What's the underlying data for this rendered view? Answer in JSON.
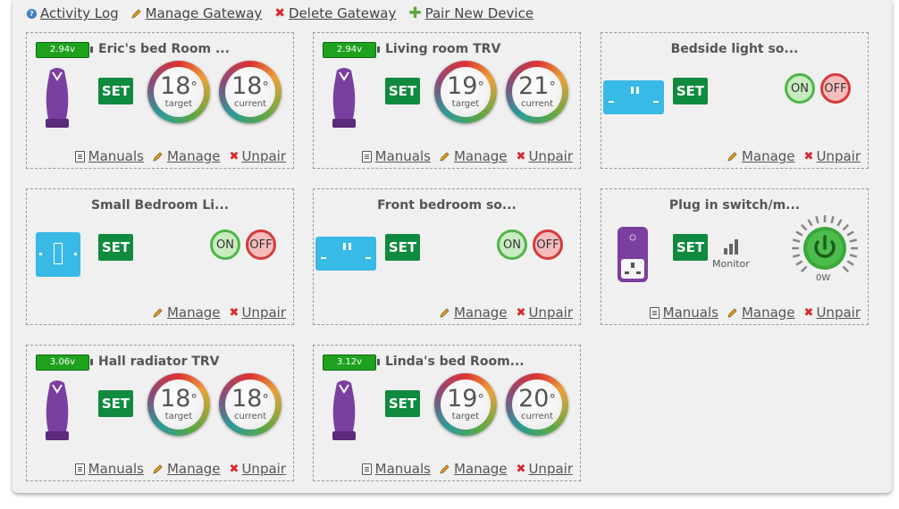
{
  "toplinks": {
    "activity_log": "Activity Log",
    "manage_gateway": "Manage Gateway",
    "delete_gateway": "Delete Gateway",
    "pair_new_device": "Pair New Device"
  },
  "common": {
    "set": "SET",
    "manuals": "Manuals",
    "manage": "Manage",
    "unpair": "Unpair",
    "target": "target",
    "current": "current",
    "on": "ON",
    "off": "OFF",
    "degree": "°",
    "monitor": "Monitor"
  },
  "cards": {
    "erics": {
      "title": "Eric's bed Room ...",
      "battery": "2.94v",
      "target": "18",
      "current": "18"
    },
    "living": {
      "title": "Living room TRV",
      "battery": "2.94v",
      "target": "19",
      "current": "21"
    },
    "bedside": {
      "title": "Bedside light so..."
    },
    "small": {
      "title": "Small Bedroom Li..."
    },
    "front": {
      "title": "Front bedroom so..."
    },
    "plug": {
      "title": "Plug in switch/m...",
      "power": "0W"
    },
    "hall": {
      "title": "Hall radiator TRV",
      "battery": "3.06v",
      "target": "18",
      "current": "18"
    },
    "linda": {
      "title": "Linda's bed Room...",
      "battery": "3.12v",
      "target": "19",
      "current": "20"
    }
  },
  "colors": {
    "set_button": "#0f8a3e",
    "battery": "#1ea21e",
    "socket": "#39b9e6",
    "trv": "#7b3fa0",
    "power_button": "#3aa83a",
    "on_border": "#4fb648",
    "off_border": "#d63a3a"
  }
}
